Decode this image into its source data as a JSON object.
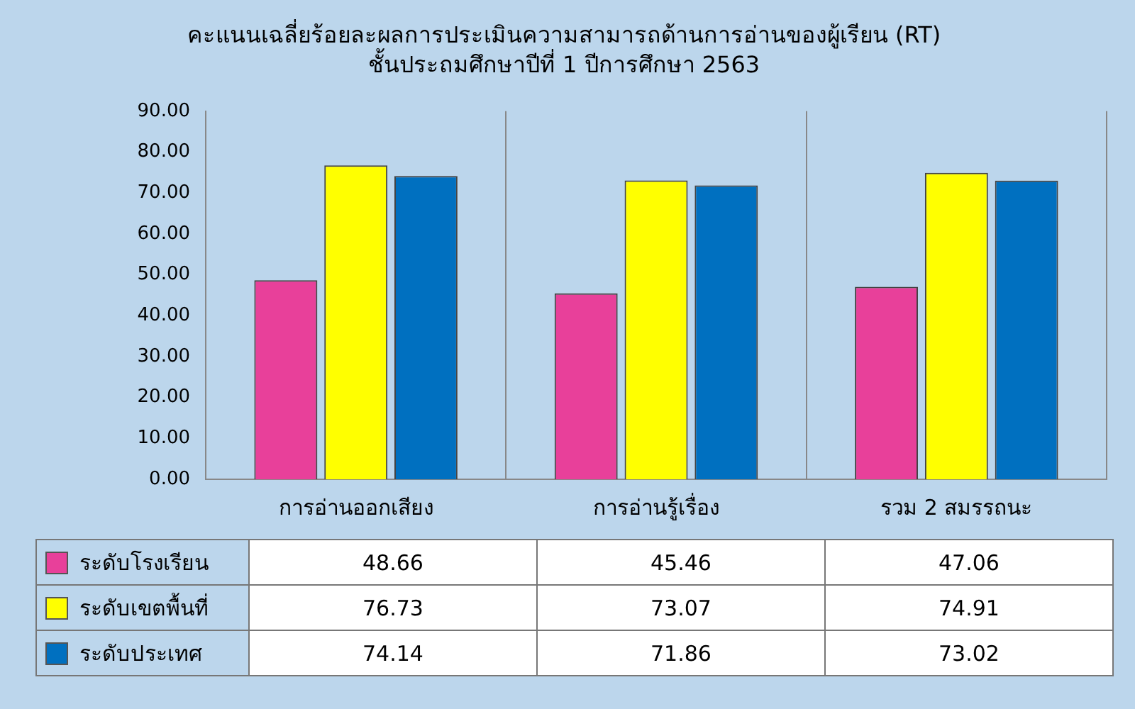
{
  "chart_data": {
    "type": "bar",
    "title": "คะแนนเฉลี่ยร้อยละผลการประเมินความสามารถด้านการอ่านของผู้เรียน (RT)",
    "subtitle": "ชั้นประถมศึกษาปีที่ 1 ปีการศึกษา 2563",
    "categories": [
      "การอ่านออกเสียง",
      "การอ่านรู้เรื่อง",
      "รวม 2 สมรรถนะ"
    ],
    "series": [
      {
        "name": "ระดับโรงเรียน",
        "color": "#e8409a",
        "values": [
          48.66,
          45.46,
          47.06
        ]
      },
      {
        "name": "ระดับเขตพื้นที่",
        "color": "#ffff00",
        "values": [
          76.73,
          73.07,
          74.91
        ]
      },
      {
        "name": "ระดับประเทศ",
        "color": "#0070c0",
        "values": [
          74.14,
          71.86,
          73.02
        ]
      }
    ],
    "ylim": [
      0,
      90
    ],
    "yticks": [
      {
        "value": 0,
        "label": "0.00"
      },
      {
        "value": 10,
        "label": "10.00"
      },
      {
        "value": 20,
        "label": "20.00"
      },
      {
        "value": 30,
        "label": "30.00"
      },
      {
        "value": 40,
        "label": "40.00"
      },
      {
        "value": 50,
        "label": "50.00"
      },
      {
        "value": 60,
        "label": "60.00"
      },
      {
        "value": 70,
        "label": "70.00"
      },
      {
        "value": 80,
        "label": "80.00"
      },
      {
        "value": 90,
        "label": "90.00"
      }
    ],
    "grid": "x",
    "legend": "bottom left",
    "data_labels": true
  }
}
